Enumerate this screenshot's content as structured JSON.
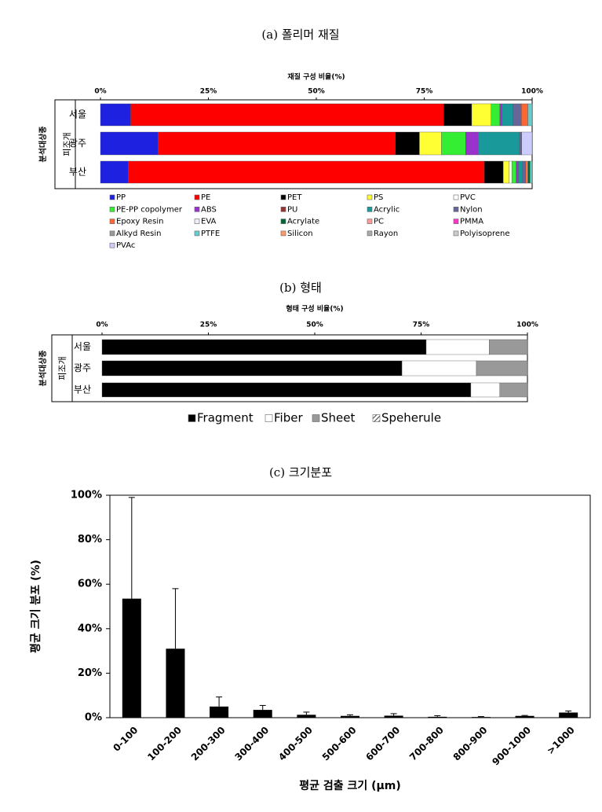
{
  "chart_data": [
    {
      "type": "stacked_barh",
      "title": "(a) 폴리머 재질",
      "xlabel": "재질 구성 비율(%)",
      "ylabel": "피조개",
      "ygroup": "분석대상종",
      "categories": [
        "서울",
        "광주",
        "부산"
      ],
      "xlim": [
        0,
        100
      ],
      "xticks": [
        {
          "value": 0,
          "label": "0%"
        },
        {
          "value": 25,
          "label": "25%"
        },
        {
          "value": 50,
          "label": "50%"
        },
        {
          "value": 75,
          "label": "75%"
        },
        {
          "value": 100,
          "label": "100%"
        }
      ],
      "series": [
        {
          "name": "PP",
          "color": "#1e22e0",
          "values": [
            7,
            13.3,
            6.4
          ]
        },
        {
          "name": "PE",
          "color": "#ff0000",
          "values": [
            72.5,
            55,
            82.5
          ]
        },
        {
          "name": "PET",
          "color": "#000000",
          "values": [
            6.5,
            5.6,
            4.4
          ]
        },
        {
          "name": "PS",
          "color": "#ffff33",
          "values": [
            4.5,
            5.1,
            1.4
          ]
        },
        {
          "name": "PVC",
          "color": "#ffffff",
          "values": [
            0,
            0,
            0.6
          ]
        },
        {
          "name": "PE-PP copolymer",
          "color": "#33ee33",
          "values": [
            2,
            5.6,
            1
          ]
        },
        {
          "name": "ABS",
          "color": "#9933cc",
          "values": [
            0.5,
            2.9,
            0.5
          ]
        },
        {
          "name": "PU",
          "color": "#993333",
          "values": [
            0,
            0,
            0
          ]
        },
        {
          "name": "Acrylic",
          "color": "#199999",
          "values": [
            2.5,
            9.6,
            1
          ]
        },
        {
          "name": "Nylon",
          "color": "#666699",
          "values": [
            2,
            0.5,
            0.7
          ]
        },
        {
          "name": "Epoxy Resin",
          "color": "#ff6633",
          "values": [
            1.5,
            0,
            0.3
          ]
        },
        {
          "name": "EVA",
          "color": "#eeeeff",
          "values": [
            0,
            0,
            0.2
          ]
        },
        {
          "name": "Acrylate",
          "color": "#006633",
          "values": [
            0,
            0,
            0.5
          ]
        },
        {
          "name": "PC",
          "color": "#ff9999",
          "values": [
            0,
            0,
            0
          ]
        },
        {
          "name": "PMMA",
          "color": "#ff33cc",
          "values": [
            0,
            0,
            0
          ]
        },
        {
          "name": "Alkyd Resin",
          "color": "#999999",
          "values": [
            0,
            0,
            0
          ]
        },
        {
          "name": "PTFE",
          "color": "#66cccc",
          "values": [
            1,
            0,
            0.5
          ]
        },
        {
          "name": "Silicon",
          "color": "#ff9966",
          "values": [
            0,
            0,
            0
          ]
        },
        {
          "name": "Rayon",
          "color": "#aaaaaa",
          "values": [
            0,
            0,
            0
          ]
        },
        {
          "name": "Polyisoprene",
          "color": "#cccccc",
          "values": [
            0,
            0,
            0
          ]
        },
        {
          "name": "PVAc",
          "color": "#ccccff",
          "values": [
            0,
            2.4,
            0
          ]
        }
      ]
    },
    {
      "type": "stacked_barh",
      "title": "(b) 형태",
      "xlabel": "형태 구성 비율(%)",
      "ylabel": "피조개",
      "ygroup": "분석대상종",
      "categories": [
        "서울",
        "광주",
        "부산"
      ],
      "xlim": [
        0,
        100
      ],
      "xticks": [
        {
          "value": 0,
          "label": "0%"
        },
        {
          "value": 25,
          "label": "25%"
        },
        {
          "value": 50,
          "label": "50%"
        },
        {
          "value": 75,
          "label": "75%"
        },
        {
          "value": 100,
          "label": "100%"
        }
      ],
      "series": [
        {
          "name": "Fragment",
          "color": "#000000",
          "values": [
            76.2,
            70.5,
            86.7
          ]
        },
        {
          "name": "Fiber",
          "color": "#ffffff",
          "values": [
            14.8,
            17.5,
            6.8
          ]
        },
        {
          "name": "Sheet",
          "color": "#999999",
          "values": [
            9,
            12,
            6.5
          ]
        },
        {
          "name": "Speherule",
          "color": "#ffffff",
          "hatch": true,
          "values": [
            0,
            0,
            0
          ]
        }
      ]
    },
    {
      "type": "bar",
      "title": "(c) 크기분포",
      "xlabel": "평균 검출 크기 (μm)",
      "ylabel": "평균 크기 분포 (%)",
      "categories": [
        "0-100",
        "100-200",
        "200-300",
        "300-400",
        "400-500",
        "500-600",
        "600-700",
        "700-800",
        "800-900",
        "900-1000",
        ">1000"
      ],
      "values": [
        53.5,
        31,
        5,
        3.5,
        1.3,
        0.8,
        0.9,
        0.4,
        0.3,
        0.8,
        2.3
      ],
      "errors": [
        45.5,
        27,
        4.3,
        2,
        1.2,
        0.5,
        0.9,
        0.5,
        0.2,
        0.2,
        0.7
      ],
      "color": "#000000",
      "ylim": [
        0,
        100
      ],
      "yticks": [
        {
          "value": 0,
          "label": "0%"
        },
        {
          "value": 20,
          "label": "20%"
        },
        {
          "value": 40,
          "label": "40%"
        },
        {
          "value": 60,
          "label": "60%"
        },
        {
          "value": 80,
          "label": "80%"
        },
        {
          "value": 100,
          "label": "100%"
        }
      ]
    }
  ]
}
